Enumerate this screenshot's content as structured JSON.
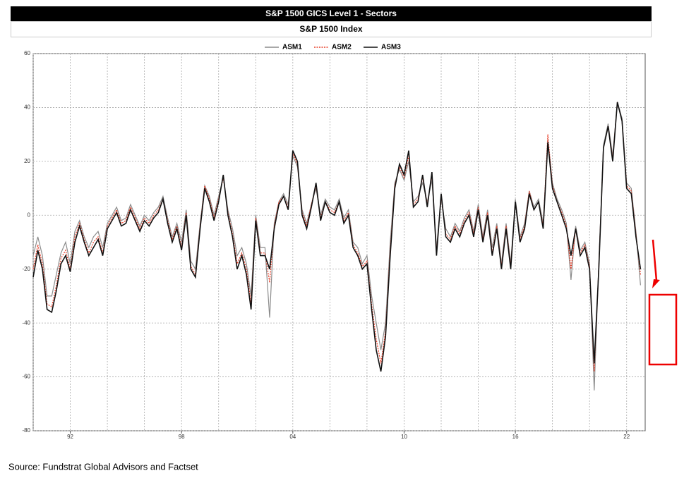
{
  "chart_data": {
    "type": "line",
    "title": "S&P 1500 GICS Level 1 - Sectors",
    "subtitle": "S&P 1500 Index",
    "source": "Source:  Fundstrat Global Advisors and Factset",
    "xlim": [
      1990,
      2023
    ],
    "xticks": [
      {
        "value": 1992,
        "label": "92"
      },
      {
        "value": 1998,
        "label": "98"
      },
      {
        "value": 2004,
        "label": "04"
      },
      {
        "value": 2010,
        "label": "10"
      },
      {
        "value": 2016,
        "label": "16"
      },
      {
        "value": 2022,
        "label": "22"
      }
    ],
    "x_grid": [
      1990,
      1992,
      1994,
      1996,
      1998,
      2000,
      2002,
      2004,
      2006,
      2008,
      2010,
      2012,
      2014,
      2016,
      2018,
      2020,
      2022
    ],
    "ylim": [
      -80,
      60
    ],
    "yticks": [
      -80,
      -60,
      -40,
      -20,
      0,
      20,
      40,
      60
    ],
    "grid": true,
    "legend": "top",
    "x": [
      1990,
      1990.25,
      1990.5,
      1990.75,
      1991,
      1991.25,
      1991.5,
      1991.75,
      1992,
      1992.25,
      1992.5,
      1992.75,
      1993,
      1993.25,
      1993.5,
      1993.75,
      1994,
      1994.25,
      1994.5,
      1994.75,
      1995,
      1995.25,
      1995.5,
      1995.75,
      1996,
      1996.25,
      1996.5,
      1996.75,
      1997,
      1997.25,
      1997.5,
      1997.75,
      1998,
      1998.25,
      1998.5,
      1998.75,
      1999,
      1999.25,
      1999.5,
      1999.75,
      2000,
      2000.25,
      2000.5,
      2000.75,
      2001,
      2001.25,
      2001.5,
      2001.75,
      2002,
      2002.25,
      2002.5,
      2002.75,
      2003,
      2003.25,
      2003.5,
      2003.75,
      2004,
      2004.25,
      2004.5,
      2004.75,
      2005,
      2005.25,
      2005.5,
      2005.75,
      2006,
      2006.25,
      2006.5,
      2006.75,
      2007,
      2007.25,
      2007.5,
      2007.75,
      2008,
      2008.25,
      2008.5,
      2008.75,
      2009,
      2009.25,
      2009.5,
      2009.75,
      2010,
      2010.25,
      2010.5,
      2010.75,
      2011,
      2011.25,
      2011.5,
      2011.75,
      2012,
      2012.25,
      2012.5,
      2012.75,
      2013,
      2013.25,
      2013.5,
      2013.75,
      2014,
      2014.25,
      2014.5,
      2014.75,
      2015,
      2015.25,
      2015.5,
      2015.75,
      2016,
      2016.25,
      2016.5,
      2016.75,
      2017,
      2017.25,
      2017.5,
      2017.75,
      2018,
      2018.25,
      2018.5,
      2018.75,
      2019,
      2019.25,
      2019.5,
      2019.75,
      2020,
      2020.25,
      2020.5,
      2020.75,
      2021,
      2021.25,
      2021.5,
      2021.75,
      2022,
      2022.25,
      2022.5,
      2022.75
    ],
    "series": [
      {
        "name": "ASM1",
        "color": "#8c8c8c",
        "dash": "solid",
        "values": [
          -15,
          -8,
          -15,
          -30,
          -30,
          -22,
          -14,
          -10,
          -18,
          -6,
          -2,
          -8,
          -12,
          -8,
          -6,
          -12,
          -3,
          0,
          3,
          -2,
          -1,
          4,
          0,
          -4,
          0,
          -2,
          1,
          3,
          7,
          -1,
          -8,
          -3,
          -10,
          2,
          -17,
          -20,
          -3,
          11,
          7,
          0,
          7,
          14,
          2,
          -5,
          -15,
          -12,
          -18,
          -30,
          0,
          -12,
          -12,
          -38,
          -3,
          5,
          8,
          4,
          22,
          18,
          2,
          -3,
          4,
          10,
          0,
          6,
          3,
          2,
          6,
          -1,
          2,
          -10,
          -12,
          -18,
          -15,
          -30,
          -40,
          -50,
          -40,
          -10,
          12,
          17,
          13,
          20,
          5,
          7,
          12,
          5,
          13,
          -12,
          6,
          -5,
          -8,
          -3,
          -6,
          -1,
          2,
          -6,
          4,
          -8,
          2,
          -12,
          -3,
          -18,
          -3,
          -18,
          6,
          -8,
          -3,
          9,
          3,
          6,
          -3,
          28,
          12,
          6,
          2,
          -3,
          -24,
          -4,
          -13,
          -10,
          -18,
          -65,
          -18,
          26,
          34,
          22,
          42,
          36,
          12,
          10,
          -6,
          -26
        ]
      },
      {
        "name": "ASM2",
        "color": "#e8402a",
        "dash": "dotted",
        "values": [
          -20,
          -11,
          -18,
          -33,
          -34,
          -26,
          -16,
          -13,
          -20,
          -8,
          -3,
          -9,
          -14,
          -10,
          -8,
          -14,
          -4,
          -1,
          2,
          -3,
          -2,
          3,
          -1,
          -5,
          -1,
          -3,
          0,
          2,
          6,
          -2,
          -9,
          -4,
          -12,
          1,
          -19,
          -22,
          -4,
          11,
          6,
          -1,
          6,
          14,
          1,
          -7,
          -18,
          -14,
          -20,
          -33,
          -1,
          -14,
          -14,
          -25,
          -4,
          5,
          7,
          3,
          23,
          19,
          1,
          -4,
          4,
          11,
          -1,
          5,
          2,
          1,
          5,
          -2,
          1,
          -11,
          -14,
          -19,
          -17,
          -33,
          -46,
          -55,
          -43,
          -13,
          11,
          18,
          14,
          22,
          4,
          6,
          14,
          4,
          15,
          -14,
          7,
          -7,
          -9,
          -4,
          -7,
          -2,
          1,
          -7,
          3,
          -9,
          1,
          -14,
          -4,
          -19,
          -4,
          -19,
          5,
          -9,
          -4,
          9,
          2,
          5,
          -4,
          30,
          11,
          5,
          1,
          -4,
          -20,
          -5,
          -14,
          -11,
          -19,
          -58,
          -19,
          25,
          33,
          21,
          42,
          35,
          11,
          9,
          -7,
          -22
        ]
      },
      {
        "name": "ASM3",
        "color": "#111111",
        "dash": "solid",
        "values": [
          -23,
          -13,
          -20,
          -35,
          -36,
          -28,
          -18,
          -15,
          -21,
          -10,
          -4,
          -10,
          -15,
          -12,
          -9,
          -15,
          -5,
          -2,
          1,
          -4,
          -3,
          2,
          -2,
          -6,
          -2,
          -4,
          -1,
          1,
          6,
          -3,
          -10,
          -5,
          -13,
          0,
          -20,
          -23,
          -5,
          10,
          5,
          -2,
          5,
          15,
          0,
          -8,
          -20,
          -15,
          -22,
          -35,
          -2,
          -15,
          -15,
          -20,
          -5,
          4,
          7,
          2,
          24,
          20,
          0,
          -5,
          3,
          12,
          -2,
          5,
          1,
          0,
          5,
          -3,
          0,
          -12,
          -15,
          -20,
          -18,
          -35,
          -50,
          -58,
          -45,
          -15,
          10,
          19,
          15,
          24,
          3,
          5,
          15,
          3,
          16,
          -15,
          8,
          -8,
          -10,
          -5,
          -8,
          -3,
          0,
          -8,
          2,
          -10,
          0,
          -15,
          -5,
          -20,
          -5,
          -20,
          5,
          -10,
          -5,
          8,
          2,
          5,
          -5,
          27,
          10,
          5,
          0,
          -5,
          -15,
          -5,
          -15,
          -12,
          -20,
          -55,
          -20,
          25,
          33,
          20,
          42,
          35,
          10,
          8,
          -8,
          -20
        ]
      }
    ]
  }
}
